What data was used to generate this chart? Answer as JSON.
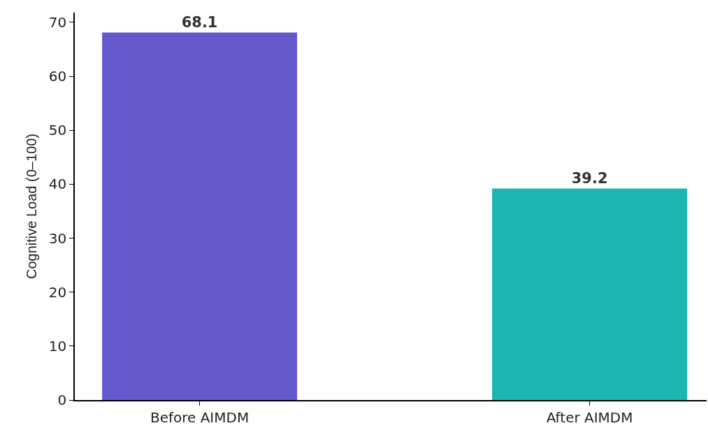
{
  "chart_data": {
    "type": "bar",
    "ylabel": "Cognitive Load (0–100)",
    "categories": [
      "Before AIMDM",
      "After AIMDM"
    ],
    "values": [
      68.1,
      39.2
    ],
    "colors": [
      "#6557cc",
      "#1cb5b0"
    ],
    "ylim": [
      0,
      71.8
    ],
    "yticks": [
      0,
      10,
      20,
      30,
      40,
      50,
      60,
      70
    ],
    "grid": false,
    "data_labels": true
  }
}
